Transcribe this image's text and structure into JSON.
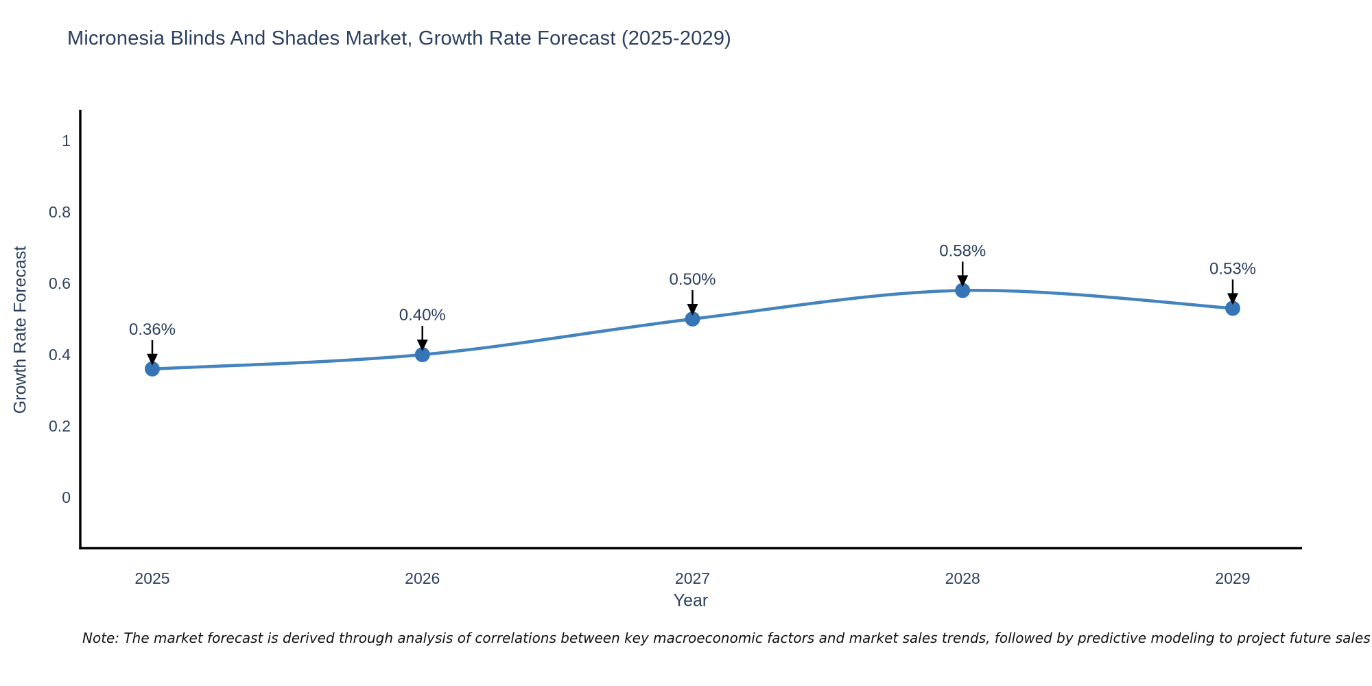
{
  "chart_data": {
    "type": "line",
    "title": "Micronesia Blinds And Shades Market, Growth Rate Forecast (2025-2029)",
    "xlabel": "Year",
    "ylabel": "Growth Rate Forecast",
    "categories": [
      "2025",
      "2026",
      "2027",
      "2028",
      "2029"
    ],
    "values": [
      0.36,
      0.4,
      0.5,
      0.58,
      0.53
    ],
    "point_labels": [
      "0.36%",
      "0.40%",
      "0.50%",
      "0.58%",
      "0.53%"
    ],
    "y_tick_labels": [
      "0",
      "0.2",
      "0.4",
      "0.6",
      "0.8",
      "1"
    ],
    "ylim": [
      -0.145,
      1.085
    ],
    "line_shape": "spline",
    "grid": false,
    "legend": "none",
    "colors": {
      "line": "#4484be",
      "marker": "#3575b5",
      "axis": "#000000",
      "arrow": "#000000",
      "text": "#2a3f5f",
      "note_text": "#111111"
    },
    "note": "Note: The market forecast is derived through analysis of correlations between key macroeconomic factors and market sales trends, followed by predictive modeling to project future sales"
  }
}
